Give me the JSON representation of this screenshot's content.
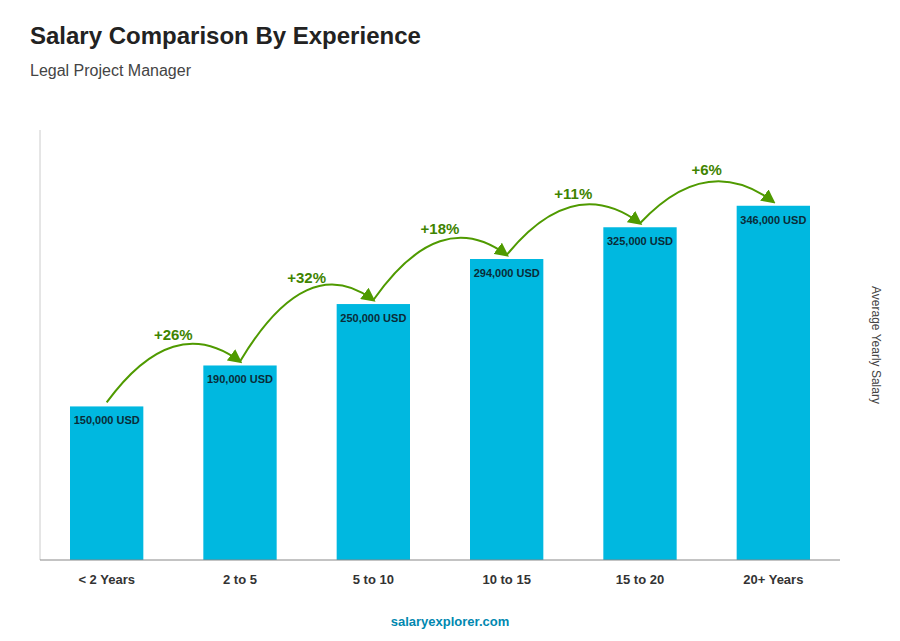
{
  "chart_data": {
    "type": "bar",
    "title": "Salary Comparison By Experience",
    "subtitle": "Legal Project Manager",
    "categories": [
      "< 2 Years",
      "2 to 5",
      "5 to 10",
      "10 to 15",
      "15 to 20",
      "20+ Years"
    ],
    "values": [
      150000,
      190000,
      250000,
      294000,
      325000,
      346000
    ],
    "value_labels": [
      "150,000 USD",
      "190,000 USD",
      "250,000 USD",
      "294,000 USD",
      "325,000 USD",
      "346,000 USD"
    ],
    "data_labels": true,
    "color": "#00b8e0",
    "ylabel": "Average Yearly Salary",
    "annotations": [
      "+26%",
      "+32%",
      "+18%",
      "+11%",
      "+6%"
    ],
    "footer": "salaryexplorer.com",
    "ylim": [
      0,
      420000
    ],
    "tick_labels": "x",
    "grid": false
  }
}
